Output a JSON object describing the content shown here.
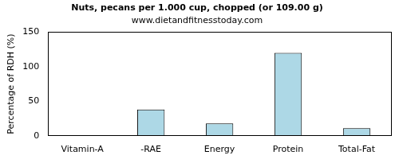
{
  "chart_data": {
    "type": "bar",
    "title": "Nuts, pecans per 1.000 cup, chopped (or 109.00 g)",
    "subtitle": "www.dietandfitnesstoday.com",
    "y_label": "Percentage of RDH (%)",
    "categories": [
      "Vitamin-A",
      "-RAE",
      "Energy",
      "Protein",
      "Total-Fat"
    ],
    "values": [
      0,
      38,
      18,
      120,
      11
    ],
    "color": "#add8e6",
    "ylim": [
      0,
      150
    ],
    "yticks": [
      0,
      50,
      100,
      150
    ],
    "grid": false
  }
}
